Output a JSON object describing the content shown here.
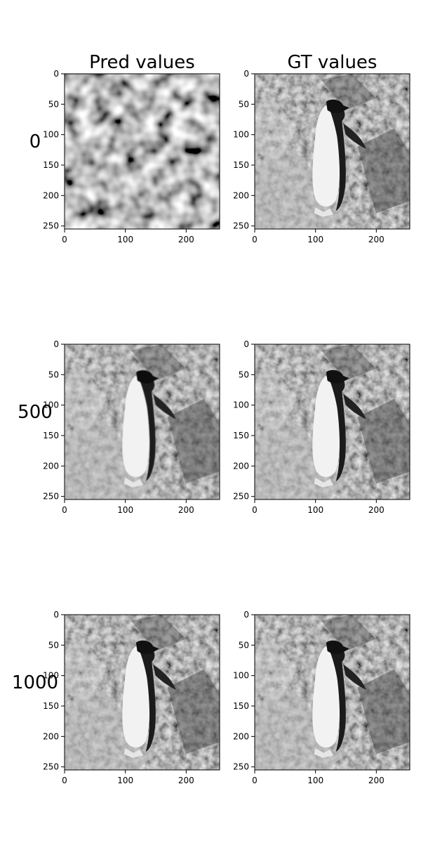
{
  "chart_data": {
    "type": "heatmap",
    "columns": [
      "Pred values",
      "GT values"
    ],
    "rows": [
      "0",
      "500",
      "1000"
    ],
    "axes": {
      "xticks": [
        0,
        100,
        200
      ],
      "yticks": [
        0,
        50,
        100,
        150,
        200,
        250
      ],
      "xlim": [
        0,
        255
      ],
      "ylim": [
        255,
        0
      ]
    },
    "panels": [
      {
        "row": "0",
        "column": "Pred values",
        "content": "noise"
      },
      {
        "row": "0",
        "column": "GT values",
        "content": "penguin"
      },
      {
        "row": "500",
        "column": "Pred values",
        "content": "penguin-soft"
      },
      {
        "row": "500",
        "column": "GT values",
        "content": "penguin"
      },
      {
        "row": "1000",
        "column": "Pred values",
        "content": "penguin"
      },
      {
        "row": "1000",
        "column": "GT values",
        "content": "penguin"
      }
    ],
    "colormap": "gray"
  }
}
